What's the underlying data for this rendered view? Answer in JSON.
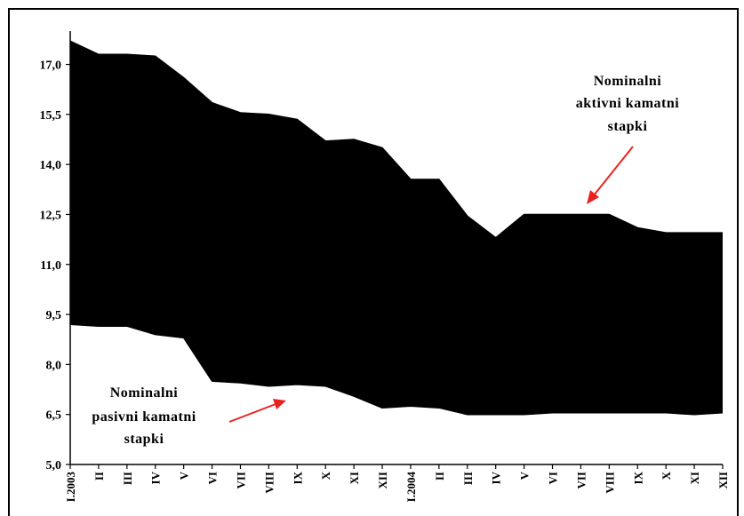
{
  "chart_data": {
    "type": "area",
    "categories": [
      "I.2003",
      "II",
      "III",
      "IV",
      "V",
      "VI",
      "VII",
      "VIII",
      "IX",
      "X",
      "XI",
      "XII",
      "I.2004",
      "II",
      "III",
      "IV",
      "V",
      "VI",
      "VII",
      "VIII",
      "IX",
      "X",
      "XI",
      "XII"
    ],
    "series": [
      {
        "name": "Nominalni aktivni kamatni stapki",
        "values": [
          17.7,
          17.3,
          17.3,
          17.25,
          16.6,
          15.85,
          15.55,
          15.5,
          15.35,
          14.7,
          14.75,
          14.5,
          13.55,
          13.55,
          12.45,
          11.8,
          12.5,
          12.5,
          12.5,
          12.5,
          12.1,
          11.95,
          11.95,
          11.95
        ]
      },
      {
        "name": "Nominalni pasivni kamatni stapki",
        "values": [
          9.2,
          9.15,
          9.15,
          8.9,
          8.8,
          7.5,
          7.45,
          7.35,
          7.4,
          7.35,
          7.05,
          6.7,
          6.75,
          6.7,
          6.5,
          6.5,
          6.5,
          6.55,
          6.55,
          6.55,
          6.55,
          6.55,
          6.5,
          6.55
        ]
      }
    ],
    "ylim": [
      5.0,
      18.0
    ],
    "yticks": [
      "5,0",
      "6,5",
      "8,0",
      "9,5",
      "11,0",
      "12,5",
      "14,0",
      "15,5",
      "17,0"
    ],
    "ytick_values": [
      5.0,
      6.5,
      8.0,
      9.5,
      11.0,
      12.5,
      14.0,
      15.5,
      17.0
    ],
    "annotations": [
      {
        "lines": [
          "Nominalni",
          "aktivni kamatni",
          "stapki"
        ],
        "color": "#000000"
      },
      {
        "lines": [
          "Nominalni",
          "pasivni kamatni",
          "stapki"
        ],
        "color": "#000000"
      }
    ],
    "arrow_color": "#e8231e",
    "fill_color": "#000000",
    "grid": false
  }
}
